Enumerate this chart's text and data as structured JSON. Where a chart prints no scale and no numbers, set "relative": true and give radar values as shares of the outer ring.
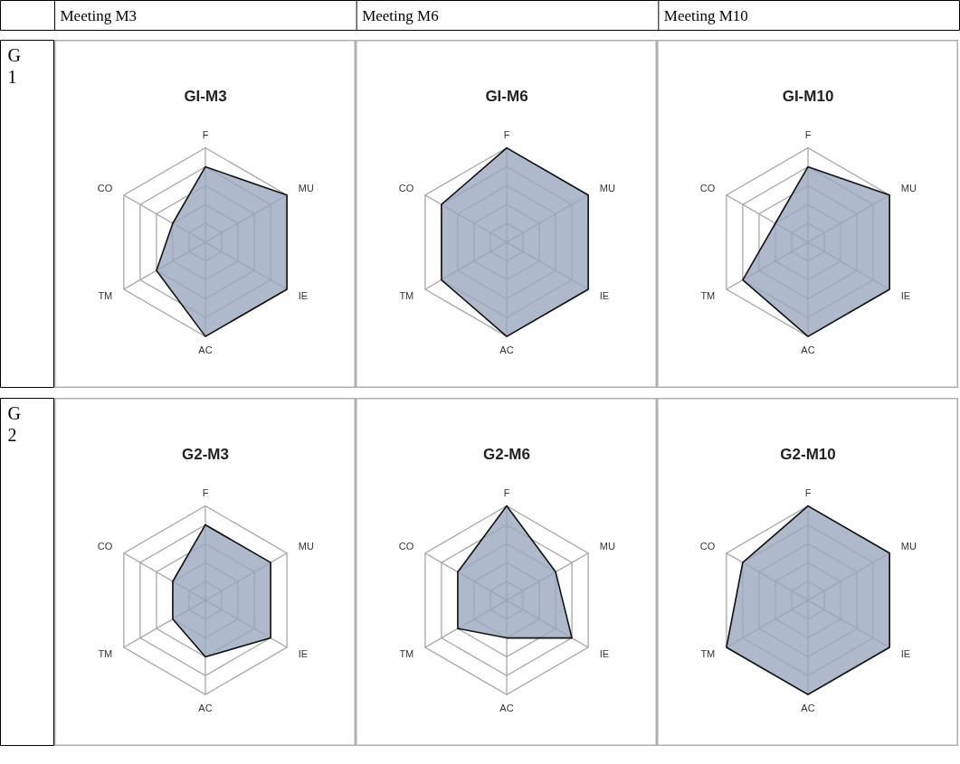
{
  "chart_data": [
    {
      "type": "other",
      "annotations": [
        "Meeting M3",
        "Meeting M6",
        "Meeting M10"
      ]
    },
    {
      "type": "other",
      "annotations": [
        "G1"
      ]
    },
    {
      "type": "radar",
      "title": "GI-M3",
      "categories": [
        "F",
        "MU",
        "IE",
        "AC",
        "TM",
        "CO"
      ],
      "relative": true,
      "grid": true,
      "series": [
        {
          "color": "#9aa9be",
          "values": [
            0.8,
            1,
            1,
            1,
            0.6,
            0.4
          ]
        }
      ]
    },
    {
      "type": "radar",
      "title": "GI-M6",
      "categories": [
        "F",
        "MU",
        "IE",
        "AC",
        "TM",
        "CO"
      ],
      "relative": true,
      "grid": true,
      "series": [
        {
          "color": "#9aa9be",
          "values": [
            1,
            1,
            1,
            1,
            0.8,
            0.8
          ]
        }
      ]
    },
    {
      "type": "radar",
      "title": "GI-M10",
      "categories": [
        "F",
        "MU",
        "IE",
        "AC",
        "TM",
        "CO"
      ],
      "relative": true,
      "grid": true,
      "series": [
        {
          "color": "#9aa9be",
          "values": [
            0.8,
            1,
            1,
            1,
            0.8,
            0.4
          ]
        }
      ]
    },
    {
      "type": "other",
      "annotations": [
        "G2"
      ]
    },
    {
      "type": "radar",
      "title": "G2-M3",
      "categories": [
        "F",
        "MU",
        "IE",
        "AC",
        "TM",
        "CO"
      ],
      "relative": true,
      "grid": true,
      "series": [
        {
          "color": "#9aa9be",
          "values": [
            0.8,
            0.8,
            0.8,
            0.6,
            0.4,
            0.4
          ]
        }
      ]
    },
    {
      "type": "radar",
      "title": "G2-M6",
      "categories": [
        "F",
        "MU",
        "IE",
        "AC",
        "TM",
        "CO"
      ],
      "relative": true,
      "grid": true,
      "series": [
        {
          "color": "#9aa9be",
          "values": [
            1,
            0.6,
            0.8,
            0.4,
            0.6,
            0.6
          ]
        }
      ]
    },
    {
      "type": "radar",
      "title": "G2-M10",
      "categories": [
        "F",
        "MU",
        "IE",
        "AC",
        "TM",
        "CO"
      ],
      "relative": true,
      "grid": true,
      "series": [
        {
          "color": "#9aa9be",
          "values": [
            1,
            1,
            1,
            1,
            1,
            0.8
          ]
        }
      ]
    }
  ]
}
